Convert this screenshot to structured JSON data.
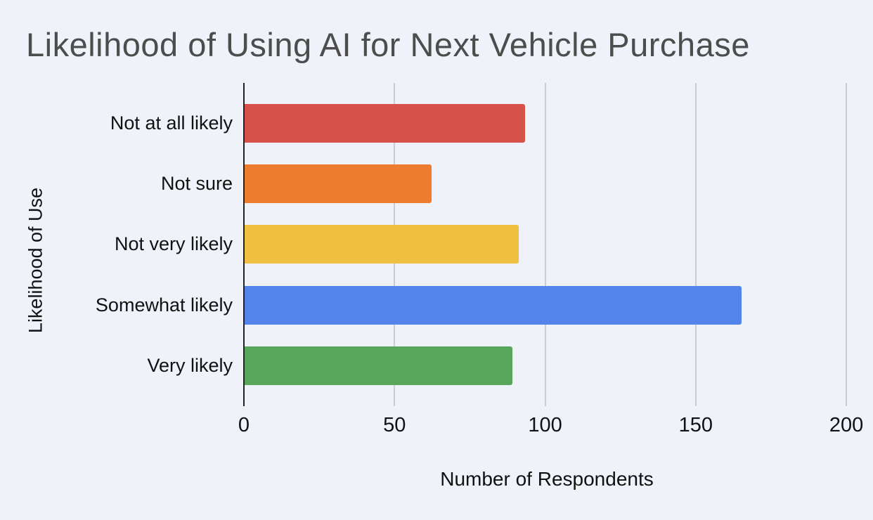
{
  "chart_data": {
    "type": "bar",
    "orientation": "horizontal",
    "title": "Likelihood of Using AI for Next Vehicle Purchase",
    "xlabel": "Number of Respondents",
    "ylabel": "Likelihood of Use",
    "categories": [
      "Not at all likely",
      "Not sure",
      "Not very likely",
      "Somewhat likely",
      "Very likely"
    ],
    "values": [
      93,
      62,
      91,
      165,
      89
    ],
    "bar_colors": [
      "#D5514A",
      "#ED7C31",
      "#F1BF42",
      "#5384EC",
      "#58A55C"
    ],
    "x_ticks": [
      0,
      50,
      100,
      150,
      200
    ],
    "x_tick_labels": [
      "0",
      "50",
      "100",
      "150",
      "200"
    ],
    "xlim": [
      0,
      209
    ],
    "grid": "vertical-gridlines-on",
    "legend": "none",
    "colors": {
      "background": "#EFF2F8",
      "gridline": "#C9CCD1",
      "axis_line": "#222222",
      "title_text": "#4D4D4D",
      "label_text": "#111111"
    }
  }
}
